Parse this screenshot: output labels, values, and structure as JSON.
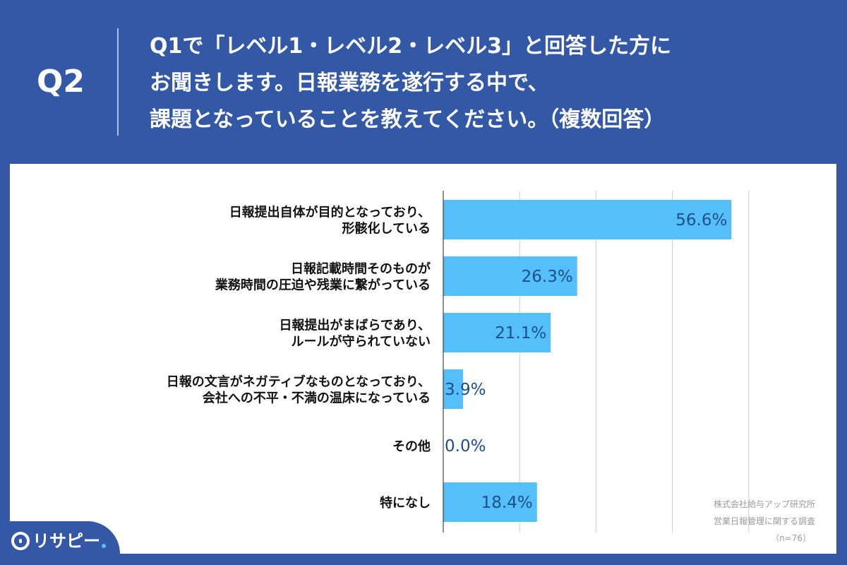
{
  "header": {
    "question_number": "Q2",
    "question_lines": [
      "Q1で「レベル1・レベル2・レベル3」と回答した方に",
      "お聞きします。日報業務を遂行する中で、",
      "課題となっていることを教えてください。（複数回答）"
    ]
  },
  "footnote": {
    "line1": "株式会社給与アップ研究所",
    "line2": "営業日報管理に関する調査",
    "line3": "（n=76）"
  },
  "logo": {
    "text": "リサピー",
    "icon": "pin-icon"
  },
  "colors": {
    "background": "#3358a5",
    "bar": "#54bff9",
    "value_label": "#1f4f8a",
    "category_label": "#111111",
    "grid": "#cccccc"
  },
  "chart_data": {
    "type": "bar",
    "orientation": "horizontal",
    "categories": [
      [
        "日報提出自体が目的となっており、",
        "形骸化している"
      ],
      [
        "日報記載時間そのものが",
        "業務時間の圧迫や残業に繋がっている"
      ],
      [
        "日報提出がまばらであり、",
        "ルールが守られていない"
      ],
      [
        "日報の文言がネガティブなものとなっており、",
        "会社への不平・不満の温床になっている"
      ],
      [
        "その他"
      ],
      [
        "特になし"
      ]
    ],
    "values": [
      56.6,
      26.3,
      21.1,
      3.9,
      0.0,
      18.4
    ],
    "value_labels": [
      "56.6%",
      "26.3%",
      "21.1%",
      "3.9%",
      "0.0%",
      "18.4%"
    ],
    "xlim": [
      0,
      70
    ],
    "grid": true,
    "grid_step": 15
  }
}
